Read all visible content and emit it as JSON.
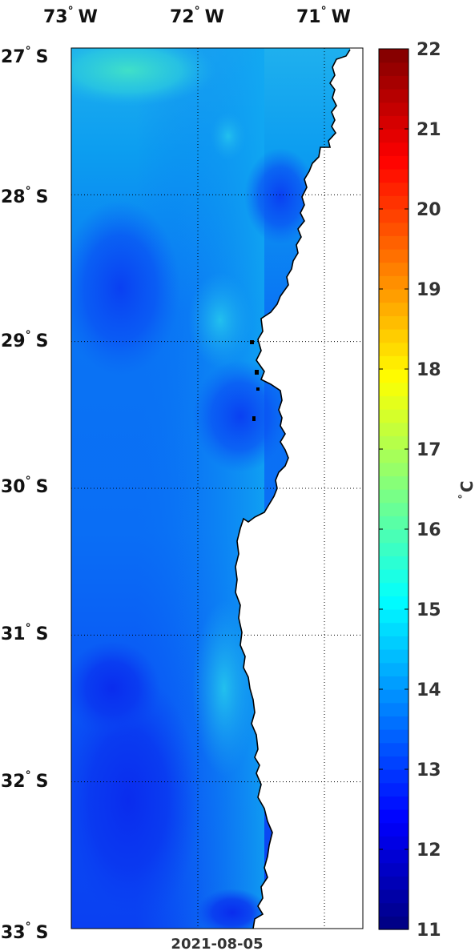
{
  "map": {
    "date": "2021-08-05",
    "longitude_ticks": [
      {
        "deg": "73",
        "hem": "W"
      },
      {
        "deg": "72",
        "hem": "W"
      },
      {
        "deg": "71",
        "hem": "W"
      }
    ],
    "latitude_ticks": [
      {
        "deg": "27",
        "hem": "S"
      },
      {
        "deg": "28",
        "hem": "S"
      },
      {
        "deg": "29",
        "hem": "S"
      },
      {
        "deg": "30",
        "hem": "S"
      },
      {
        "deg": "31",
        "hem": "S"
      },
      {
        "deg": "32",
        "hem": "S"
      },
      {
        "deg": "33",
        "hem": "S"
      }
    ],
    "gridlines": "dotted",
    "land_color": "#ffffff",
    "coastline_color": "#000000"
  },
  "colorbar": {
    "min": 11,
    "max": 22,
    "ticks": [
      "11",
      "12",
      "13",
      "14",
      "15",
      "16",
      "17",
      "18",
      "19",
      "20",
      "21",
      "22"
    ],
    "unit_symbol": "°",
    "unit_letter": "C",
    "colormap": "jet"
  }
}
